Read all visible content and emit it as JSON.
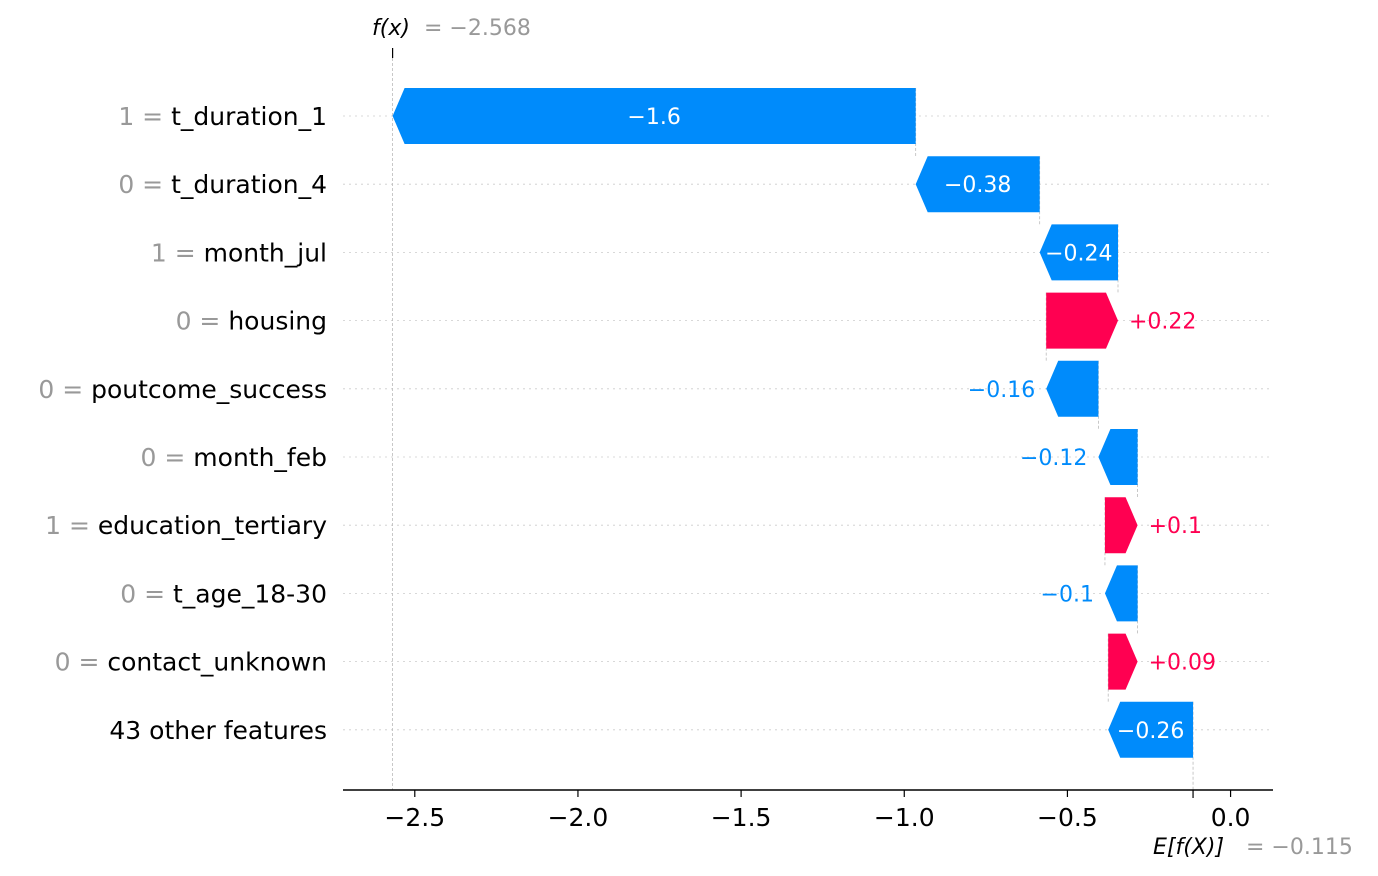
{
  "chart_data": {
    "type": "waterfall",
    "fx_label": "f(x)",
    "fx_value": "−2.568",
    "efx_label": "E[f(X)]",
    "efx_value": "−0.115",
    "base_value": -0.115,
    "final_value": -2.568,
    "xlim": [
      -2.72,
      0.13
    ],
    "xticks": [
      -2.5,
      -2.0,
      -1.5,
      -1.0,
      -0.5,
      0.0
    ],
    "xtick_labels": [
      "−2.5",
      "−2.0",
      "−1.5",
      "−1.0",
      "−0.5",
      "0.0"
    ],
    "colors": {
      "positive": "#ff0051",
      "negative": "#008bfb",
      "feature_value": "#999999"
    },
    "rows": [
      {
        "value_text": "1 =",
        "feature": "t_duration_1",
        "start": -0.965,
        "end": -2.568,
        "label": "−1.6"
      },
      {
        "value_text": "0 =",
        "feature": "t_duration_4",
        "start": -0.585,
        "end": -0.965,
        "label": "−0.38"
      },
      {
        "value_text": "1 =",
        "feature": "month_jul",
        "start": -0.345,
        "end": -0.585,
        "label": "−0.24"
      },
      {
        "value_text": "0 =",
        "feature": "housing",
        "start": -0.565,
        "end": -0.345,
        "label": "+0.22"
      },
      {
        "value_text": "0 =",
        "feature": "poutcome_success",
        "start": -0.405,
        "end": -0.565,
        "label": "−0.16"
      },
      {
        "value_text": "0 =",
        "feature": "month_feb",
        "start": -0.285,
        "end": -0.405,
        "label": "−0.12"
      },
      {
        "value_text": "1 =",
        "feature": "education_tertiary",
        "start": -0.385,
        "end": -0.285,
        "label": "+0.1"
      },
      {
        "value_text": "0 =",
        "feature": "t_age_18-30",
        "start": -0.285,
        "end": -0.385,
        "label": "−0.1"
      },
      {
        "value_text": "0 =",
        "feature": "contact_unknown",
        "start": -0.375,
        "end": -0.285,
        "label": "+0.09"
      },
      {
        "value_text": "",
        "feature": "43 other features",
        "start": -0.115,
        "end": -0.375,
        "label": "−0.26"
      }
    ]
  }
}
